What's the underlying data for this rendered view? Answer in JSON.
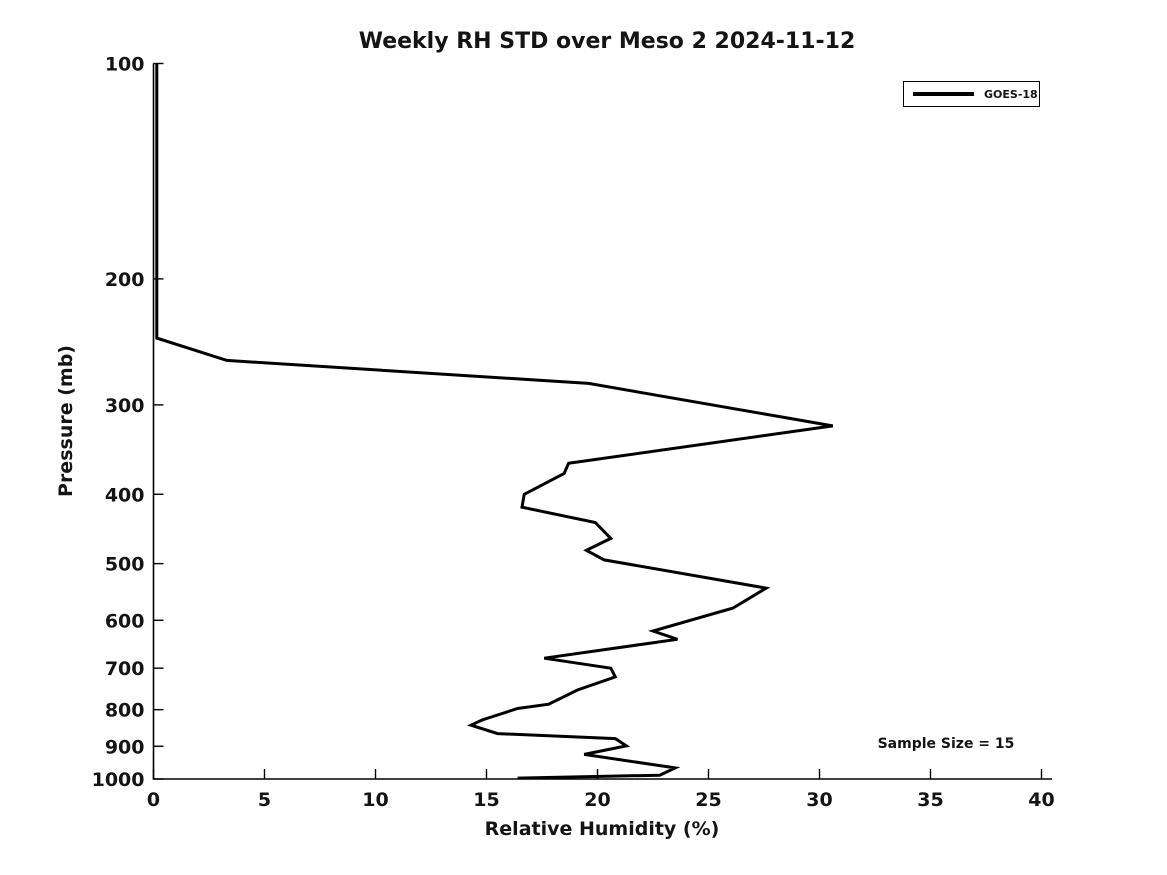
{
  "title": "Weekly RH STD over Meso 2 2024-11-12",
  "annotation": "Sample Size = 15",
  "colors": {
    "line": "#000000",
    "background": "#ffffff",
    "text": "#141414"
  },
  "legend": {
    "position": "northeast",
    "label": "GOES-18"
  },
  "chart_data": {
    "type": "line",
    "title": "Weekly RH STD over Meso 2 2024-11-12",
    "xlabel": "Relative Humidity (%)",
    "ylabel": "Pressure (mb)",
    "xlim": [
      0,
      40
    ],
    "ylim": [
      100,
      1000
    ],
    "yscale": "log",
    "y_inverted": true,
    "grid": false,
    "xticks": [
      0,
      5,
      10,
      15,
      20,
      25,
      30,
      35,
      40
    ],
    "yticks": [
      100,
      200,
      300,
      400,
      500,
      600,
      700,
      800,
      900,
      1000
    ],
    "legend_entries": [
      "GOES-18"
    ],
    "annotation": "Sample Size = 15",
    "series": [
      {
        "name": "GOES-18",
        "points_format": [
          "rh_percent",
          "pressure_mb"
        ],
        "points": [
          [
            0.15,
            100
          ],
          [
            0.15,
            242
          ],
          [
            3.3,
            260
          ],
          [
            19.6,
            280
          ],
          [
            30.6,
            321
          ],
          [
            18.7,
            362
          ],
          [
            18.5,
            374
          ],
          [
            16.7,
            400
          ],
          [
            16.6,
            417
          ],
          [
            19.9,
            438
          ],
          [
            20.6,
            461
          ],
          [
            19.5,
            479
          ],
          [
            20.3,
            494
          ],
          [
            27.6,
            541
          ],
          [
            26.1,
            577
          ],
          [
            22.5,
            621
          ],
          [
            23.6,
            638
          ],
          [
            17.6,
            678
          ],
          [
            20.6,
            700
          ],
          [
            20.8,
            720
          ],
          [
            19.1,
            751
          ],
          [
            17.8,
            786
          ],
          [
            16.4,
            797
          ],
          [
            14.8,
            827
          ],
          [
            14.3,
            841
          ],
          [
            15.5,
            864
          ],
          [
            20.8,
            878
          ],
          [
            21.3,
            899
          ],
          [
            19.4,
            924
          ],
          [
            23.5,
            965
          ],
          [
            22.8,
            988
          ],
          [
            16.4,
            997
          ]
        ]
      }
    ]
  }
}
